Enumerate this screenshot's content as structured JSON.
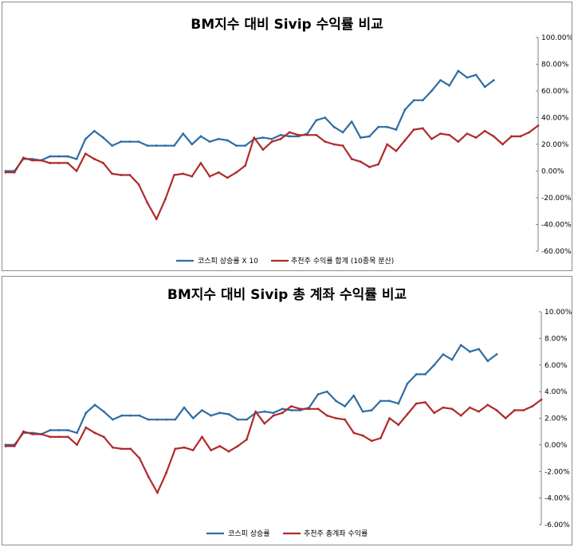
{
  "chart_data": [
    {
      "type": "line",
      "title": "BM지수 대비 Sivip 수익률 비교",
      "ylim": [
        -60,
        100
      ],
      "y_ticks": [
        "100.00%",
        "80.00%",
        "60.00%",
        "40.00%",
        "20.00%",
        "0.00%",
        "-20.00%",
        "-40.00%",
        "-60.00%"
      ],
      "y_tick_values": [
        100,
        80,
        60,
        40,
        20,
        0,
        -20,
        -40,
        -60
      ],
      "y_axis_side": "right",
      "grid": false,
      "legend_position": "bottom",
      "xlabel": "",
      "ylabel": "",
      "x_count": 61,
      "colors": [
        "#2e6da4",
        "#b02a2a"
      ],
      "series": [
        {
          "name": "코스피 상승률 X 10",
          "values": [
            0,
            0,
            9,
            9,
            8,
            11,
            11,
            11,
            9,
            24,
            30,
            25,
            19,
            22,
            22,
            22,
            19,
            19,
            19,
            19,
            28,
            20,
            26,
            22,
            24,
            23,
            19,
            19,
            24,
            25,
            24,
            27,
            26,
            26,
            28,
            38,
            40,
            33,
            29,
            37,
            25,
            26,
            33,
            33,
            31,
            46,
            53,
            53,
            60,
            68,
            64,
            75,
            70,
            72,
            63,
            68
          ]
        },
        {
          "name": "추천주 수익률 합계 (10종목 분산)",
          "values": [
            -1,
            -1,
            10,
            8,
            8,
            6,
            6,
            6,
            0,
            13,
            9,
            6,
            -2,
            -3,
            -3,
            -10,
            -24,
            -36,
            -21,
            -3,
            -2,
            -4,
            6,
            -4,
            -1,
            -5,
            -1,
            4,
            25,
            16,
            22,
            24,
            29,
            27,
            27,
            27,
            22,
            20,
            19,
            9,
            7,
            3,
            5,
            20,
            15,
            23,
            31,
            32,
            24,
            28,
            27,
            22,
            28,
            25,
            30,
            26,
            20,
            26,
            26,
            29,
            34
          ]
        }
      ],
      "legend": [
        "코스피 상승률 X 10",
        "추천주 수익률 합계 (10종목 분산)"
      ]
    },
    {
      "type": "line",
      "title": "BM지수 대비 Sivip 총 계좌 수익률 비교",
      "ylim": [
        -6,
        10
      ],
      "y_ticks": [
        "10.00%",
        "8.00%",
        "6.00%",
        "4.00%",
        "2.00%",
        "0.00%",
        "-2.00%",
        "-4.00%",
        "-6.00%"
      ],
      "y_tick_values": [
        10,
        8,
        6,
        4,
        2,
        0,
        -2,
        -4,
        -6
      ],
      "y_axis_side": "right",
      "grid": false,
      "legend_position": "bottom",
      "xlabel": "",
      "ylabel": "",
      "x_count": 61,
      "colors": [
        "#2e6da4",
        "#b02a2a"
      ],
      "series": [
        {
          "name": "코스피 상승률",
          "values": [
            0,
            0,
            0.9,
            0.9,
            0.8,
            1.1,
            1.1,
            1.1,
            0.9,
            2.4,
            3.0,
            2.5,
            1.9,
            2.2,
            2.2,
            2.2,
            1.9,
            1.9,
            1.9,
            1.9,
            2.8,
            2.0,
            2.6,
            2.2,
            2.4,
            2.3,
            1.9,
            1.9,
            2.4,
            2.5,
            2.4,
            2.7,
            2.6,
            2.6,
            2.8,
            3.8,
            4.0,
            3.3,
            2.9,
            3.7,
            2.5,
            2.6,
            3.3,
            3.3,
            3.1,
            4.6,
            5.3,
            5.3,
            6.0,
            6.8,
            6.4,
            7.5,
            7.0,
            7.2,
            6.3,
            6.8
          ]
        },
        {
          "name": "추천주 총계좌 수익률",
          "values": [
            -0.1,
            -0.1,
            1.0,
            0.8,
            0.8,
            0.6,
            0.6,
            0.6,
            0.0,
            1.3,
            0.9,
            0.6,
            -0.2,
            -0.3,
            -0.3,
            -1.0,
            -2.4,
            -3.6,
            -2.1,
            -0.3,
            -0.2,
            -0.4,
            0.6,
            -0.4,
            -0.1,
            -0.5,
            -0.1,
            0.4,
            2.5,
            1.6,
            2.2,
            2.4,
            2.9,
            2.7,
            2.7,
            2.7,
            2.2,
            2.0,
            1.9,
            0.9,
            0.7,
            0.3,
            0.5,
            2.0,
            1.5,
            2.3,
            3.1,
            3.2,
            2.4,
            2.8,
            2.7,
            2.2,
            2.8,
            2.5,
            3.0,
            2.6,
            2.0,
            2.6,
            2.6,
            2.9,
            3.4
          ]
        }
      ],
      "legend": [
        "코스피 상승률",
        "추천주 총계좌 수익률"
      ]
    }
  ]
}
